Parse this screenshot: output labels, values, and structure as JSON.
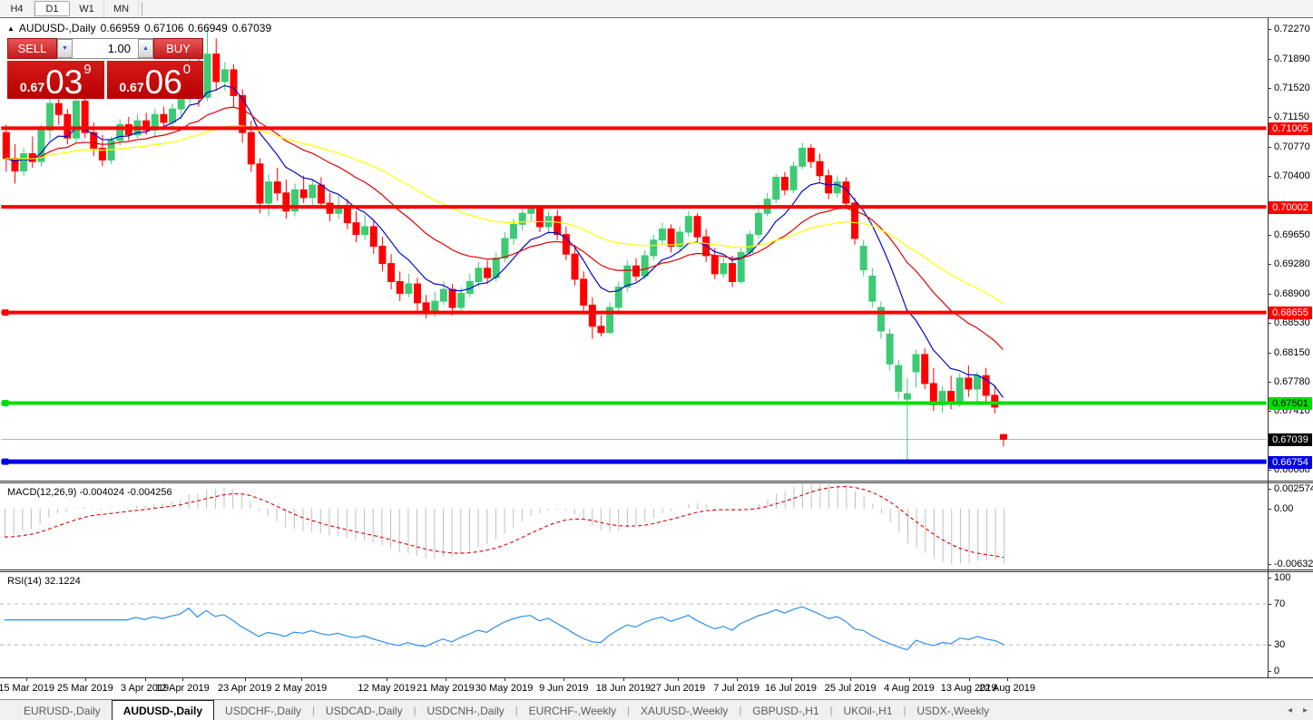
{
  "toolbar": {
    "timeframes": [
      {
        "label": "H4",
        "active": false
      },
      {
        "label": "D1",
        "active": true
      },
      {
        "label": "W1",
        "active": false
      },
      {
        "label": "MN",
        "active": false
      }
    ]
  },
  "chart_header": {
    "collapse_icon": "▲",
    "symbol": "AUDUSD-,Daily",
    "open": "0.66959",
    "high": "0.67106",
    "low": "0.66949",
    "close": "0.67039"
  },
  "trade_panel": {
    "sell_label": "SELL",
    "buy_label": "BUY",
    "volume": "1.00",
    "spin_down_icon": "▼",
    "spin_up_icon": "▲",
    "sell_price": {
      "base": "0.67",
      "big": "03",
      "sup": "9"
    },
    "buy_price": {
      "base": "0.67",
      "big": "06",
      "sup": "0"
    }
  },
  "macd_panel": {
    "title": "MACD(12,26,9) -0.004024 -0.004256"
  },
  "rsi_panel": {
    "title": "RSI(14) 32.1224"
  },
  "tab_scroll": {
    "left_icon": "◂",
    "right_icon": "▸"
  },
  "tabs": [
    {
      "label": "EURUSD-,Daily",
      "active": false
    },
    {
      "label": "AUDUSD-,Daily",
      "active": true
    },
    {
      "label": "USDCHF-,Daily",
      "active": false
    },
    {
      "label": "USDCAD-,Daily",
      "active": false
    },
    {
      "label": "USDCNH-,Daily",
      "active": false
    },
    {
      "label": "EURCHF-,Weekly",
      "active": false
    },
    {
      "label": "XAUUSD-,Weekly",
      "active": false
    },
    {
      "label": "GBPUSD-,H1",
      "active": false
    },
    {
      "label": "UKOil-,H1",
      "active": false
    },
    {
      "label": "USDX-,Weekly",
      "active": false
    }
  ],
  "chart_data": {
    "type": "candlestick",
    "symbol": "AUDUSD",
    "timeframe": "Daily",
    "up_color": "#3CCB74",
    "down_color": "#FF0000",
    "visible_range": {
      "top": 0.72397,
      "bottom": 0.66524
    },
    "price_ticks": [
      {
        "label": "0.72270",
        "value": 0.7227
      },
      {
        "label": "0.71890",
        "value": 0.7189
      },
      {
        "label": "0.71520",
        "value": 0.7152
      },
      {
        "label": "0.71150",
        "value": 0.7115
      },
      {
        "label": "0.70770",
        "value": 0.7077
      },
      {
        "label": "0.70400",
        "value": 0.704
      },
      {
        "label": "0.69650",
        "value": 0.6965
      },
      {
        "label": "0.69280",
        "value": 0.6928
      },
      {
        "label": "0.68900",
        "value": 0.689
      },
      {
        "label": "0.68530",
        "value": 0.6853
      },
      {
        "label": "0.68150",
        "value": 0.6815
      },
      {
        "label": "0.67780",
        "value": 0.6778
      },
      {
        "label": "0.67410",
        "value": 0.6741
      },
      {
        "label": "0.66660",
        "value": 0.6666
      }
    ],
    "levels": [
      {
        "label": "0.71005",
        "price": 0.71005,
        "color": "#FF0000",
        "text_color": "#ffffff",
        "thickness": 4,
        "handle": false
      },
      {
        "label": "0.70002",
        "price": 0.70002,
        "color": "#FF0000",
        "text_color": "#ffffff",
        "thickness": 4,
        "handle": false
      },
      {
        "label": "0.68655",
        "price": 0.68655,
        "color": "#FF0000",
        "text_color": "#ffffff",
        "thickness": 4,
        "handle": true
      },
      {
        "label": "0.67501",
        "price": 0.67501,
        "color": "#00DE00",
        "text_color": "#000000",
        "thickness": 4,
        "handle": true
      },
      {
        "label": "0.66754",
        "price": 0.66754,
        "color": "#0000E6",
        "text_color": "#ffffff",
        "thickness": 5,
        "handle": true
      }
    ],
    "current_price": {
      "label": "0.67039",
      "value": 0.67039,
      "line_color": "#b4b4b4",
      "tag_bg": "#000000",
      "tag_text": "#ffffff"
    },
    "moving_averages": [
      {
        "period": 8,
        "color": "#0008C8"
      },
      {
        "period": 21,
        "color": "#DC0000"
      },
      {
        "period": 45,
        "color": "#FFFF00"
      }
    ],
    "macd": {
      "fast": 12,
      "slow": 26,
      "signal": 9,
      "value": -0.004024,
      "signal_value": -0.004256,
      "range_top": 0.002574,
      "range_bottom": -0.006326,
      "axis_ticks": [
        {
          "label": "0.002574",
          "value": 0.002574
        },
        {
          "label": "0.00",
          "value": 0
        },
        {
          "label": "-0.006326",
          "value": -0.006326
        }
      ],
      "histogram_color": "#C0C0C0",
      "signal_color": "#DC0000"
    },
    "rsi": {
      "period": 14,
      "value": 32.1224,
      "color": "#2E8EEB",
      "levels": [
        70,
        30
      ],
      "axis_ticks": [
        {
          "label": "100",
          "value": 100
        },
        {
          "label": "70",
          "value": 70
        },
        {
          "label": "30",
          "value": 30
        },
        {
          "label": "0",
          "value": 0
        }
      ]
    },
    "date_ticks": [
      {
        "label": "15 Mar 2019",
        "bar": 2.5
      },
      {
        "label": "25 Mar 2019",
        "bar": 9.2
      },
      {
        "label": "3 Apr 2019",
        "bar": 16.0
      },
      {
        "label": "12 Apr 2019",
        "bar": 20.3
      },
      {
        "label": "23 Apr 2019",
        "bar": 27.4
      },
      {
        "label": "2 May 2019",
        "bar": 33.8
      },
      {
        "label": "12 May 2019",
        "bar": 43.6
      },
      {
        "label": "21 May 2019",
        "bar": 50.3
      },
      {
        "label": "30 May 2019",
        "bar": 57.0
      },
      {
        "label": "9 Jun 2019",
        "bar": 63.8
      },
      {
        "label": "18 Jun 2019",
        "bar": 70.6
      },
      {
        "label": "27 Jun 2019",
        "bar": 76.8
      },
      {
        "label": "7 Jul 2019",
        "bar": 83.5
      },
      {
        "label": "16 Jul 2019",
        "bar": 89.7
      },
      {
        "label": "25 Jul 2019",
        "bar": 96.5
      },
      {
        "label": "4 Aug 2019",
        "bar": 103.2
      },
      {
        "label": "13 Aug 2019",
        "bar": 110.0
      },
      {
        "label": "22 Aug 2019",
        "bar": 114.4
      }
    ],
    "candles": [
      [
        0.7095,
        0.7105,
        0.7045,
        0.7062
      ],
      [
        0.7062,
        0.708,
        0.703,
        0.7046
      ],
      [
        0.7046,
        0.7075,
        0.704,
        0.7068
      ],
      [
        0.7068,
        0.709,
        0.705,
        0.7058
      ],
      [
        0.7058,
        0.7105,
        0.7052,
        0.7098
      ],
      [
        0.7098,
        0.714,
        0.7085,
        0.7132
      ],
      [
        0.7132,
        0.7142,
        0.7105,
        0.7118
      ],
      [
        0.7118,
        0.7125,
        0.708,
        0.7088
      ],
      [
        0.7088,
        0.714,
        0.7082,
        0.7135
      ],
      [
        0.7135,
        0.7145,
        0.7088,
        0.7095
      ],
      [
        0.7095,
        0.7108,
        0.7065,
        0.7075
      ],
      [
        0.7075,
        0.7092,
        0.7052,
        0.706
      ],
      [
        0.706,
        0.709,
        0.7055,
        0.7085
      ],
      [
        0.7085,
        0.7112,
        0.7078,
        0.7105
      ],
      [
        0.7105,
        0.7115,
        0.7085,
        0.7092
      ],
      [
        0.7092,
        0.7118,
        0.7088,
        0.711
      ],
      [
        0.711,
        0.712,
        0.7092,
        0.7098
      ],
      [
        0.7098,
        0.7125,
        0.709,
        0.7118
      ],
      [
        0.7118,
        0.7128,
        0.71,
        0.7108
      ],
      [
        0.7108,
        0.7132,
        0.7102,
        0.7125
      ],
      [
        0.7125,
        0.7145,
        0.7112,
        0.7138
      ],
      [
        0.7138,
        0.719,
        0.7132,
        0.7185
      ],
      [
        0.7185,
        0.7192,
        0.7128,
        0.714
      ],
      [
        0.714,
        0.7228,
        0.7135,
        0.7195
      ],
      [
        0.7195,
        0.7215,
        0.7148,
        0.716
      ],
      [
        0.716,
        0.7185,
        0.7148,
        0.7175
      ],
      [
        0.7175,
        0.7182,
        0.7128,
        0.7142
      ],
      [
        0.7142,
        0.715,
        0.7082,
        0.7095
      ],
      [
        0.7095,
        0.711,
        0.7045,
        0.7055
      ],
      [
        0.7055,
        0.7062,
        0.6992,
        0.7005
      ],
      [
        0.7005,
        0.7042,
        0.6988,
        0.7032
      ],
      [
        0.7032,
        0.705,
        0.7008,
        0.7018
      ],
      [
        0.7018,
        0.7035,
        0.6985,
        0.6995
      ],
      [
        0.6995,
        0.703,
        0.6988,
        0.7022
      ],
      [
        0.7022,
        0.704,
        0.7005,
        0.7012
      ],
      [
        0.7012,
        0.7035,
        0.7002,
        0.7028
      ],
      [
        0.7028,
        0.7038,
        0.6998,
        0.7005
      ],
      [
        0.7005,
        0.7018,
        0.6982,
        0.6992
      ],
      [
        0.6992,
        0.7015,
        0.6985,
        0.7002
      ],
      [
        0.7002,
        0.701,
        0.6972,
        0.698
      ],
      [
        0.698,
        0.6995,
        0.6955,
        0.6965
      ],
      [
        0.6965,
        0.699,
        0.6958,
        0.6975
      ],
      [
        0.6975,
        0.6982,
        0.694,
        0.695
      ],
      [
        0.695,
        0.6962,
        0.6918,
        0.6928
      ],
      [
        0.6928,
        0.694,
        0.6895,
        0.6905
      ],
      [
        0.6905,
        0.6918,
        0.688,
        0.689
      ],
      [
        0.689,
        0.6915,
        0.6885,
        0.6902
      ],
      [
        0.6902,
        0.691,
        0.6868,
        0.6878
      ],
      [
        0.6878,
        0.6888,
        0.6858,
        0.6865
      ],
      [
        0.6865,
        0.6892,
        0.686,
        0.688
      ],
      [
        0.688,
        0.6905,
        0.6875,
        0.6895
      ],
      [
        0.6895,
        0.6902,
        0.6862,
        0.6872
      ],
      [
        0.6872,
        0.6898,
        0.6868,
        0.689
      ],
      [
        0.689,
        0.6915,
        0.6885,
        0.6905
      ],
      [
        0.6905,
        0.693,
        0.6898,
        0.6922
      ],
      [
        0.6922,
        0.6932,
        0.6902,
        0.691
      ],
      [
        0.691,
        0.6942,
        0.6905,
        0.6935
      ],
      [
        0.6935,
        0.6968,
        0.693,
        0.696
      ],
      [
        0.696,
        0.6985,
        0.6952,
        0.6978
      ],
      [
        0.6978,
        0.7,
        0.697,
        0.6992
      ],
      [
        0.6992,
        0.7003,
        0.6982,
        0.6998
      ],
      [
        0.6998,
        0.7002,
        0.6968,
        0.6975
      ],
      [
        0.6975,
        0.6995,
        0.6965,
        0.6988
      ],
      [
        0.6988,
        0.6996,
        0.6958,
        0.6965
      ],
      [
        0.6965,
        0.6975,
        0.6932,
        0.694
      ],
      [
        0.694,
        0.6952,
        0.69,
        0.6908
      ],
      [
        0.6908,
        0.6918,
        0.6868,
        0.6875
      ],
      [
        0.6875,
        0.6885,
        0.6832,
        0.6848
      ],
      [
        0.6848,
        0.6862,
        0.6835,
        0.684
      ],
      [
        0.684,
        0.6878,
        0.6838,
        0.6872
      ],
      [
        0.6872,
        0.6905,
        0.6868,
        0.6898
      ],
      [
        0.6898,
        0.6932,
        0.6892,
        0.6925
      ],
      [
        0.6925,
        0.6935,
        0.6905,
        0.6912
      ],
      [
        0.6912,
        0.6945,
        0.6908,
        0.6938
      ],
      [
        0.6938,
        0.6965,
        0.6932,
        0.6958
      ],
      [
        0.6958,
        0.698,
        0.6952,
        0.6972
      ],
      [
        0.6972,
        0.6978,
        0.6942,
        0.695
      ],
      [
        0.695,
        0.6975,
        0.6945,
        0.6968
      ],
      [
        0.6968,
        0.6995,
        0.6962,
        0.6988
      ],
      [
        0.6988,
        0.6992,
        0.6955,
        0.6962
      ],
      [
        0.6962,
        0.6972,
        0.693,
        0.6938
      ],
      [
        0.6938,
        0.6948,
        0.6908,
        0.6915
      ],
      [
        0.6915,
        0.6935,
        0.691,
        0.6928
      ],
      [
        0.6928,
        0.6938,
        0.6898,
        0.6905
      ],
      [
        0.6905,
        0.6948,
        0.6902,
        0.6942
      ],
      [
        0.6942,
        0.697,
        0.6938,
        0.6965
      ],
      [
        0.6965,
        0.6998,
        0.696,
        0.6992
      ],
      [
        0.6992,
        0.7018,
        0.6988,
        0.701
      ],
      [
        0.701,
        0.7042,
        0.7005,
        0.7038
      ],
      [
        0.7038,
        0.7045,
        0.7015,
        0.7022
      ],
      [
        0.7022,
        0.7058,
        0.7018,
        0.7052
      ],
      [
        0.7052,
        0.7082,
        0.7048,
        0.7075
      ],
      [
        0.7075,
        0.708,
        0.705,
        0.7058
      ],
      [
        0.7058,
        0.7068,
        0.7032,
        0.704
      ],
      [
        0.704,
        0.7048,
        0.701,
        0.7018
      ],
      [
        0.7018,
        0.704,
        0.7012,
        0.7032
      ],
      [
        0.7032,
        0.7038,
        0.6998,
        0.7005
      ],
      [
        0.7005,
        0.7012,
        0.6952,
        0.696
      ],
      [
        0.692,
        0.6958,
        0.6912,
        0.695
      ],
      [
        0.688,
        0.6922,
        0.6872,
        0.6912
      ],
      [
        0.6842,
        0.688,
        0.6832,
        0.6872
      ],
      [
        0.68,
        0.6845,
        0.6792,
        0.6838
      ],
      [
        0.6765,
        0.6805,
        0.6755,
        0.6798
      ],
      [
        0.6755,
        0.6782,
        0.6676,
        0.6762
      ],
      [
        0.679,
        0.6818,
        0.677,
        0.6812
      ],
      [
        0.6812,
        0.682,
        0.6768,
        0.6775
      ],
      [
        0.6775,
        0.6795,
        0.674,
        0.6748
      ],
      [
        0.6748,
        0.6772,
        0.6738,
        0.6765
      ],
      [
        0.6765,
        0.6785,
        0.6742,
        0.6752
      ],
      [
        0.6752,
        0.6788,
        0.6745,
        0.6782
      ],
      [
        0.6782,
        0.6798,
        0.6758,
        0.6768
      ],
      [
        0.6768,
        0.679,
        0.6748,
        0.6785
      ],
      [
        0.6785,
        0.6795,
        0.6752,
        0.676
      ],
      [
        0.676,
        0.6772,
        0.6737,
        0.6745
      ],
      [
        0.671,
        0.67106,
        0.66949,
        0.67039
      ]
    ]
  }
}
